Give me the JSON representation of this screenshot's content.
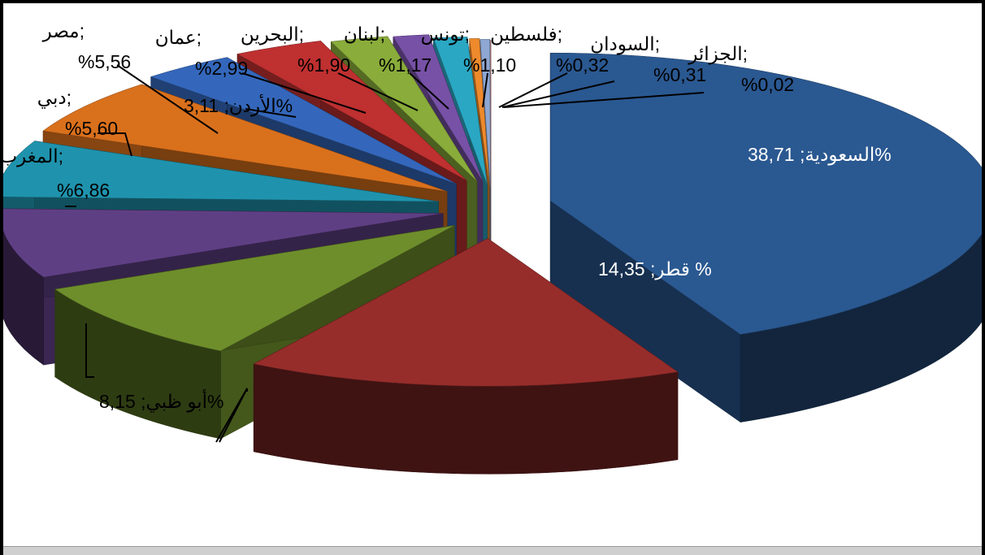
{
  "chart_data": {
    "type": "pie",
    "title": "",
    "style": "3d-exploded",
    "slices": [
      {
        "name": "السعودية",
        "label": "السعودية; 38,71%",
        "value": 38.71,
        "color": "#2a5891"
      },
      {
        "name": "قطر",
        "label": "قطر; 14,35 %",
        "value": 14.35,
        "color": "#962d2b"
      },
      {
        "name": "أبو ظبي",
        "label": "أبو ظبي; 8,15%",
        "value": 8.15,
        "color": "#6e8e2c"
      },
      {
        "name": "المغرب",
        "label": "المغرب; 6,86%",
        "value": 6.86,
        "color": "#5f3f84"
      },
      {
        "name": "دبي",
        "label": "دبي; 5,60%",
        "value": 5.6,
        "color": "#1f93ad"
      },
      {
        "name": "مصر",
        "label": "مصر; 5,56%",
        "value": 5.56,
        "color": "#d9701c"
      },
      {
        "name": "الأردن",
        "label": "الأردن; 3,11%",
        "value": 3.11,
        "color": "#3467bb"
      },
      {
        "name": "عمان",
        "label": "عمان; 2,99%",
        "value": 2.99,
        "color": "#bf3030"
      },
      {
        "name": "البحرين",
        "label": "البحرين; 1,90%",
        "value": 1.9,
        "color": "#89ac3a"
      },
      {
        "name": "لبنان",
        "label": "لبنان; 1,17%",
        "value": 1.17,
        "color": "#7751a6"
      },
      {
        "name": "تونس",
        "label": "تونس; 1,10%",
        "value": 1.1,
        "color": "#2aa7c3"
      },
      {
        "name": "فلسطين",
        "label": "فلسطين; 0,32%",
        "value": 0.32,
        "color": "#ee8a2c"
      },
      {
        "name": "السودان",
        "label": "السودان; 0,31%",
        "value": 0.31,
        "color": "#8ea7d3"
      },
      {
        "name": "الجزائر",
        "label": "الجزائر; 0,02%",
        "value": 0.02,
        "color": "#dc9a9a"
      }
    ]
  }
}
